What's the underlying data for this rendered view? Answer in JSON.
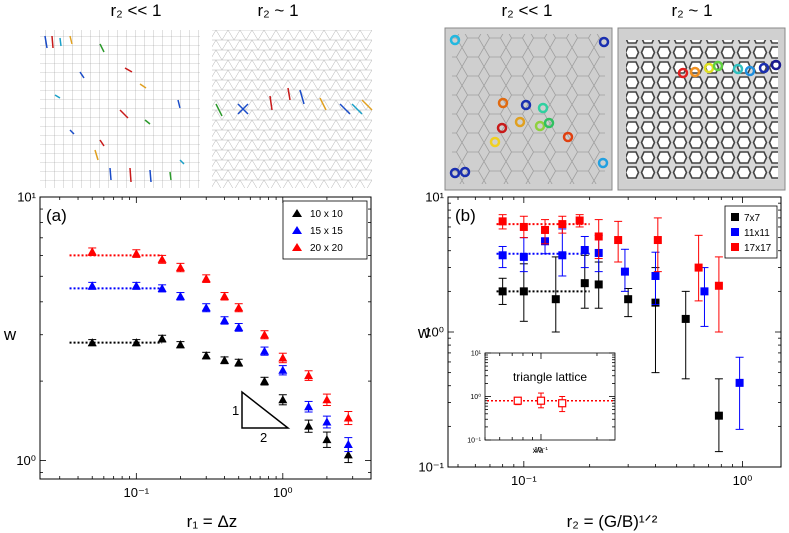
{
  "top_labels": {
    "sim_left": "r₂ << 1",
    "sim_right": "r₂ ~ 1",
    "exp_left": "r₂ << 1",
    "exp_right": "r₂ ~ 1"
  },
  "chart_data": [
    {
      "type": "scatter",
      "panel_label": "(a)",
      "xlabel": "r₁ = Δz",
      "ylabel": "w",
      "xscale": "log",
      "yscale": "log",
      "xlim": [
        0.022,
        4.0
      ],
      "ylim": [
        0.85,
        10
      ],
      "xticks": [
        {
          "v": 0.1,
          "label": "10⁻¹"
        },
        {
          "v": 1,
          "label": "10⁰"
        }
      ],
      "yticks": [
        {
          "v": 1,
          "label": "10⁰"
        },
        {
          "v": 10,
          "label": "10¹"
        }
      ],
      "legend_position": "top-right",
      "series": [
        {
          "name": "10 x 10",
          "color": "#000000",
          "x": [
            0.05,
            0.1,
            0.15,
            0.2,
            0.3,
            0.4,
            0.5,
            0.75,
            1.0,
            1.5,
            2.0,
            2.8
          ],
          "y": [
            2.8,
            2.8,
            2.9,
            2.75,
            2.5,
            2.4,
            2.35,
            2.0,
            1.7,
            1.35,
            1.2,
            1.05
          ],
          "err": [
            0.05,
            0.05,
            0.06,
            0.05,
            0.05,
            0.05,
            0.05,
            0.05,
            0.06,
            0.06,
            0.07,
            0.06
          ]
        },
        {
          "name": "15 x 15",
          "color": "#0000ff",
          "x": [
            0.05,
            0.1,
            0.15,
            0.2,
            0.3,
            0.4,
            0.5,
            0.75,
            1.0,
            1.5,
            2.0,
            2.8
          ],
          "y": [
            4.6,
            4.6,
            4.5,
            4.2,
            3.8,
            3.4,
            3.2,
            2.6,
            2.2,
            1.6,
            1.4,
            1.15
          ],
          "err": [
            0.1,
            0.1,
            0.1,
            0.1,
            0.1,
            0.08,
            0.08,
            0.07,
            0.07,
            0.06,
            0.06,
            0.06
          ]
        },
        {
          "name": "20 x 20",
          "color": "#ff0000",
          "x": [
            0.05,
            0.1,
            0.15,
            0.2,
            0.3,
            0.4,
            0.5,
            0.75,
            1.0,
            1.5,
            2.0,
            2.8
          ],
          "y": [
            6.2,
            6.1,
            5.8,
            5.4,
            4.9,
            4.2,
            3.8,
            3.0,
            2.45,
            2.1,
            1.7,
            1.45
          ],
          "err": [
            0.15,
            0.15,
            0.15,
            0.15,
            0.12,
            0.1,
            0.1,
            0.08,
            0.08,
            0.07,
            0.07,
            0.07
          ]
        }
      ],
      "plateaus": [
        {
          "color": "#000000",
          "y": 2.8,
          "x0": 0.035,
          "x1": 0.15
        },
        {
          "color": "#0000ff",
          "y": 4.5,
          "x0": 0.035,
          "x1": 0.15
        },
        {
          "color": "#ff0000",
          "y": 6.0,
          "x0": 0.035,
          "x1": 0.15
        }
      ],
      "slope_triangle": {
        "rise_label": "1",
        "run_label": "2"
      }
    },
    {
      "type": "scatter",
      "panel_label": "(b)",
      "xlabel": "r₂ = (G/B)¹ᐟ²",
      "ylabel": "w",
      "xscale": "log",
      "yscale": "log",
      "xlim": [
        0.045,
        1.5
      ],
      "ylim": [
        0.1,
        10
      ],
      "xticks": [
        {
          "v": 0.1,
          "label": "10⁻¹"
        },
        {
          "v": 1,
          "label": "10⁰"
        }
      ],
      "yticks": [
        {
          "v": 0.1,
          "label": "10⁻¹"
        },
        {
          "v": 1,
          "label": "10⁰"
        },
        {
          "v": 10,
          "label": "10¹"
        }
      ],
      "legend_position": "top-right",
      "series": [
        {
          "name": "7x7",
          "color": "#000000",
          "x": [
            0.08,
            0.1,
            0.14,
            0.19,
            0.22,
            0.3,
            0.4,
            0.55,
            0.78
          ],
          "y": [
            2.0,
            2.0,
            1.75,
            2.3,
            2.25,
            1.75,
            1.65,
            1.25,
            0.24
          ],
          "lo": [
            1.6,
            1.2,
            1.0,
            1.5,
            1.5,
            1.3,
            0.5,
            0.45,
            0.13
          ],
          "hi": [
            2.5,
            3.2,
            3.6,
            3.7,
            3.3,
            2.1,
            3.0,
            2.0,
            0.45
          ]
        },
        {
          "name": "11x11",
          "color": "#0000ff",
          "x": [
            0.08,
            0.1,
            0.125,
            0.15,
            0.19,
            0.22,
            0.29,
            0.4,
            0.67,
            0.97
          ],
          "y": [
            3.7,
            3.6,
            4.7,
            3.7,
            4.05,
            3.85,
            2.8,
            2.6,
            2.0,
            0.42
          ],
          "lo": [
            3.0,
            2.8,
            3.8,
            2.6,
            3.0,
            2.8,
            2.0,
            1.6,
            1.1,
            0.19
          ],
          "hi": [
            4.3,
            5.0,
            5.5,
            5.8,
            5.1,
            5.2,
            4.1,
            3.9,
            3.0,
            0.65
          ]
        },
        {
          "name": "17x17",
          "color": "#ff0000",
          "x": [
            0.08,
            0.1,
            0.125,
            0.15,
            0.18,
            0.22,
            0.27,
            0.41,
            0.63,
            0.78
          ],
          "y": [
            6.6,
            6.0,
            5.7,
            6.3,
            6.7,
            5.1,
            4.8,
            4.8,
            3.0,
            2.2
          ],
          "lo": [
            5.8,
            5.0,
            4.5,
            5.4,
            6.0,
            3.5,
            3.3,
            2.8,
            1.7,
            1.0
          ],
          "hi": [
            7.4,
            7.2,
            6.8,
            7.2,
            7.4,
            6.8,
            6.6,
            7.0,
            5.2,
            3.6
          ]
        }
      ],
      "plateaus": [
        {
          "color": "#000000",
          "y": 2.0,
          "x0": 0.075,
          "x1": 0.2
        },
        {
          "color": "#0000ff",
          "y": 3.8,
          "x0": 0.075,
          "x1": 0.2
        },
        {
          "color": "#ff0000",
          "y": 6.3,
          "x0": 0.075,
          "x1": 0.2
        }
      ],
      "inset": {
        "title": "triangle lattice",
        "xlabel": "x/a",
        "xscale": "log",
        "yscale": "log",
        "xlim": [
          0.05,
          0.25
        ],
        "ylim": [
          0.1,
          10
        ],
        "xticks": [
          {
            "v": 0.1,
            "label": "10⁻¹"
          }
        ],
        "yticks": [
          {
            "v": 0.1,
            "label": "10⁻¹"
          },
          {
            "v": 1,
            "label": "10⁰"
          },
          {
            "v": 10,
            "label": "10¹"
          }
        ],
        "plateau_y": 0.8,
        "points": {
          "color": "#ff0000",
          "x": [
            0.075,
            0.1,
            0.13
          ],
          "y": [
            0.8,
            0.8,
            0.7
          ],
          "lo": [
            0.65,
            0.55,
            0.45
          ],
          "hi": [
            0.95,
            1.2,
            1.0
          ]
        }
      }
    }
  ]
}
